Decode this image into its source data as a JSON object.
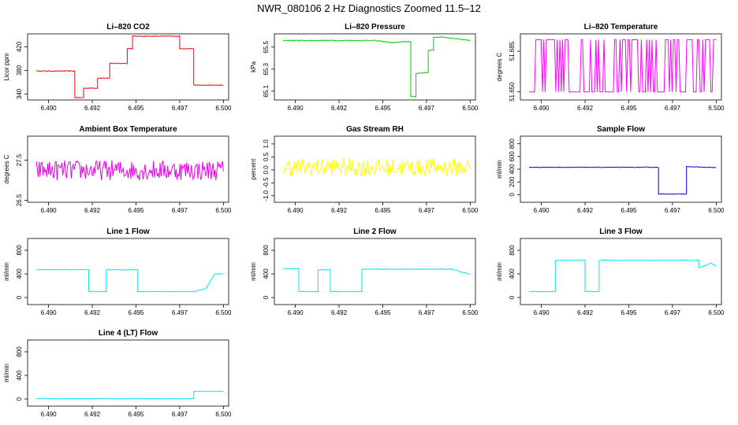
{
  "title": "NWR_080106  2 Hz Diagnostics Zoomed 11.5–12",
  "chart_data": [
    {
      "type": "line",
      "title": "Li–820 CO2",
      "ylabel": "Licor ppm",
      "color": "#ff0000",
      "xlim": [
        6.4888,
        6.5003
      ],
      "ylim": [
        330,
        442
      ],
      "xticks": [
        "6.490",
        "6.495",
        "6.500"
      ],
      "xtickvals": [
        6.49,
        6.495,
        6.5
      ],
      "yticks": [
        "340",
        "380",
        "420"
      ],
      "ytickvals": [
        340,
        380,
        420
      ],
      "x": [
        6.4893,
        6.4915,
        6.4915,
        6.492,
        6.492,
        6.4928,
        6.4928,
        6.4935,
        6.4935,
        6.4945,
        6.4945,
        6.4948,
        6.4948,
        6.4967,
        6.4967,
        6.4975,
        6.4975,
        6.4983,
        6.4983,
        6.5
      ],
      "y": [
        379,
        379,
        334,
        334,
        350,
        350,
        367,
        367,
        392,
        392,
        417,
        417,
        438,
        438,
        438,
        438,
        417,
        417,
        355,
        355
      ],
      "noise": 0.6
    },
    {
      "type": "line",
      "title": "Li–820 Pressure",
      "ylabel": "kPa",
      "color": "#00cc00",
      "xlim": [
        6.4888,
        6.5003
      ],
      "ylim": [
        65.02,
        65.62
      ],
      "xticks": [
        "6.490",
        "6.495",
        "6.500"
      ],
      "xtickvals": [
        6.49,
        6.495,
        6.5
      ],
      "yticks": [
        "65.1",
        "65.3",
        "65.5"
      ],
      "ytickvals": [
        65.1,
        65.3,
        65.5
      ],
      "x": [
        6.4893,
        6.4945,
        6.4955,
        6.4965,
        6.4966,
        6.4966,
        6.4969,
        6.4969,
        6.4976,
        6.4976,
        6.4979,
        6.4979,
        6.4985,
        6.5
      ],
      "y": [
        65.56,
        65.56,
        65.54,
        65.55,
        65.55,
        65.05,
        65.05,
        65.26,
        65.27,
        65.47,
        65.47,
        65.59,
        65.59,
        65.56
      ],
      "noise": 0.004
    },
    {
      "type": "line",
      "title": "Li–820 Temperature",
      "ylabel": "degrees C",
      "color": "#ff00ff",
      "xlim": [
        6.4888,
        6.5003
      ],
      "ylim": [
        51.643,
        51.7
      ],
      "xticks": [
        "6.490",
        "6.495",
        "6.500"
      ],
      "xtickvals": [
        6.49,
        6.495,
        6.5
      ],
      "yticks": [
        "51.650",
        "51.685"
      ],
      "ytickvals": [
        51.65,
        51.685
      ],
      "levels": [
        51.65,
        51.695
      ],
      "x": [
        6.4893,
        6.5
      ],
      "y": [
        51.65,
        51.695
      ]
    },
    {
      "type": "line",
      "title": "Ambient Box Temperature",
      "ylabel": "degrees C",
      "color": "#ee00ee",
      "xlim": [
        6.4888,
        6.5003
      ],
      "ylim": [
        26.45,
        28.1
      ],
      "xticks": [
        "6.490",
        "6.495",
        "6.500"
      ],
      "xtickvals": [
        6.49,
        6.495,
        6.5
      ],
      "yticks": [
        "26.5",
        "27.5"
      ],
      "ytickvals": [
        26.5,
        27.5
      ],
      "x": [
        6.4893,
        6.5
      ],
      "y": [
        27.25,
        27.25
      ],
      "noise": 0.25
    },
    {
      "type": "line",
      "title": "Gas Stream RH",
      "ylabel": "percent",
      "color": "#ffff00",
      "xlim": [
        6.4888,
        6.5003
      ],
      "ylim": [
        -1.25,
        1.3
      ],
      "xticks": [
        "6.490",
        "6.495",
        "6.500"
      ],
      "xtickvals": [
        6.49,
        6.495,
        6.5
      ],
      "yticks": [
        "-1.0",
        "-0.5",
        "0.0",
        "0.5",
        "1.0"
      ],
      "ytickvals": [
        -1.0,
        -0.5,
        0.0,
        0.5,
        1.0
      ],
      "x": [
        6.4893,
        6.5
      ],
      "y": [
        0.1,
        0.1
      ],
      "noise": 0.35
    },
    {
      "type": "line",
      "title": "Sample Flow",
      "ylabel": "ml/min",
      "color": "#0000cc",
      "xlim": [
        6.4888,
        6.5003
      ],
      "ylim": [
        -120,
        920
      ],
      "xticks": [
        "6.490",
        "6.495",
        "6.500"
      ],
      "xtickvals": [
        6.49,
        6.495,
        6.5
      ],
      "yticks": [
        "0",
        "200",
        "400",
        "600",
        "800"
      ],
      "ytickvals": [
        0,
        200,
        400,
        600,
        800
      ],
      "x": [
        6.4893,
        6.4967,
        6.4967,
        6.4976,
        6.4976,
        6.4983,
        6.4983,
        6.5
      ],
      "y": [
        430,
        430,
        10,
        10,
        10,
        10,
        440,
        425
      ],
      "noise": 4
    },
    {
      "type": "line",
      "title": "Line 1 Flow",
      "ylabel": "ml/min",
      "color": "#00e5ee",
      "xlim": [
        6.4888,
        6.5003
      ],
      "ylim": [
        -120,
        1000
      ],
      "xticks": [
        "6.490",
        "6.495",
        "6.500"
      ],
      "xtickvals": [
        6.49,
        6.495,
        6.5
      ],
      "yticks": [
        "0",
        "400",
        "800"
      ],
      "ytickvals": [
        0,
        400,
        800
      ],
      "x": [
        6.4893,
        6.4923,
        6.4923,
        6.4933,
        6.4933,
        6.4951,
        6.4951,
        6.4983,
        6.4983,
        6.499,
        6.4995,
        6.5
      ],
      "y": [
        470,
        470,
        100,
        100,
        470,
        470,
        100,
        100,
        100,
        150,
        400,
        400
      ],
      "noise": 5
    },
    {
      "type": "line",
      "title": "Line 2 Flow",
      "ylabel": "ml/min",
      "color": "#00e5ee",
      "xlim": [
        6.4888,
        6.5003
      ],
      "ylim": [
        -120,
        1000
      ],
      "xticks": [
        "6.490",
        "6.495",
        "6.500"
      ],
      "xtickvals": [
        6.49,
        6.495,
        6.5
      ],
      "yticks": [
        "0",
        "400",
        "800"
      ],
      "ytickvals": [
        0,
        400,
        800
      ],
      "x": [
        6.4893,
        6.4902,
        6.4902,
        6.4913,
        6.4913,
        6.492,
        6.492,
        6.4938,
        6.4938,
        6.499,
        6.4995,
        6.5
      ],
      "y": [
        490,
        490,
        100,
        100,
        470,
        470,
        100,
        100,
        480,
        480,
        430,
        400
      ],
      "noise": 6
    },
    {
      "type": "line",
      "title": "Line 3 Flow",
      "ylabel": "ml/min",
      "color": "#00e5ee",
      "xlim": [
        6.4888,
        6.5003
      ],
      "ylim": [
        -120,
        1000
      ],
      "xticks": [
        "6.490",
        "6.495",
        "6.500"
      ],
      "xtickvals": [
        6.49,
        6.495,
        6.5
      ],
      "yticks": [
        "0",
        "400",
        "800"
      ],
      "ytickvals": [
        0,
        400,
        800
      ],
      "x": [
        6.4893,
        6.4908,
        6.4908,
        6.4925,
        6.4925,
        6.4933,
        6.4933,
        6.499,
        6.499,
        6.4997,
        6.5
      ],
      "y": [
        100,
        100,
        630,
        630,
        100,
        100,
        630,
        630,
        500,
        580,
        530
      ],
      "noise": 6
    },
    {
      "type": "line",
      "title": "Line 4 (LT) Flow",
      "ylabel": "ml/min",
      "color": "#00e5ee",
      "xlim": [
        6.4888,
        6.5003
      ],
      "ylim": [
        -120,
        1000
      ],
      "xticks": [
        "6.490",
        "6.495",
        "6.500"
      ],
      "xtickvals": [
        6.49,
        6.495,
        6.5
      ],
      "yticks": [
        "0",
        "400",
        "800"
      ],
      "ytickvals": [
        0,
        400,
        800
      ],
      "x": [
        6.4893,
        6.4983,
        6.4983,
        6.5
      ],
      "y": [
        5,
        5,
        130,
        130
      ],
      "noise": 2
    }
  ]
}
